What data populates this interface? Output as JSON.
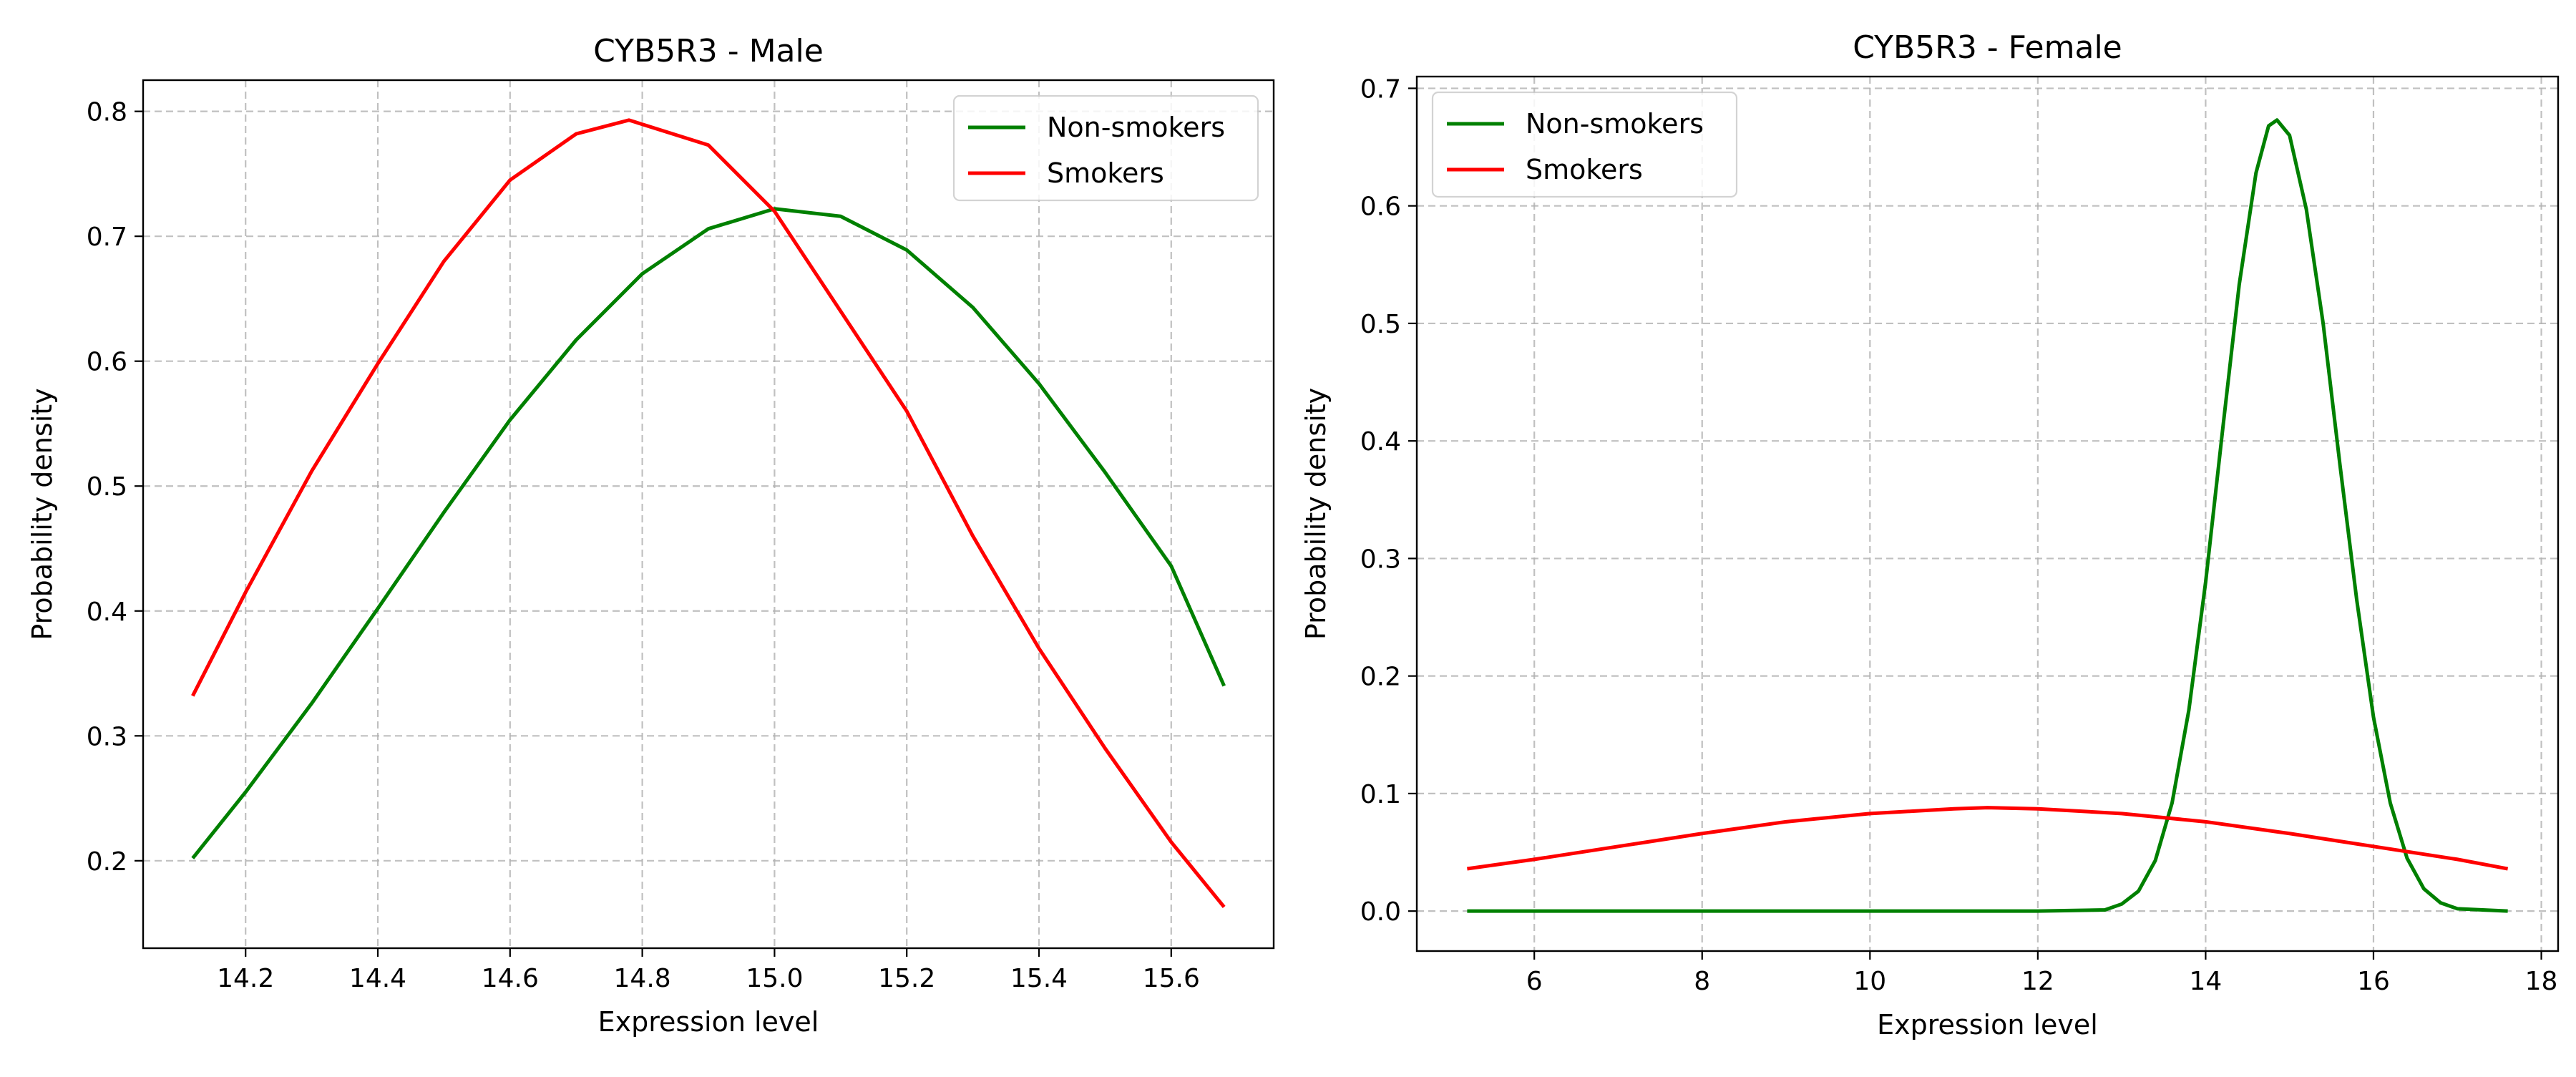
{
  "figure": {
    "background": "#ffffff"
  },
  "chart_data": [
    {
      "type": "line",
      "title": "CYB5R3 - Male",
      "xlabel": "Expression level",
      "ylabel": "Probability density",
      "xlim": [
        14.045,
        15.755
      ],
      "ylim": [
        0.13,
        0.825
      ],
      "xticks": [
        14.2,
        14.4,
        14.6,
        14.8,
        15.0,
        15.2,
        15.4,
        15.6
      ],
      "xtick_labels": [
        "14.2",
        "14.4",
        "14.6",
        "14.8",
        "15.0",
        "15.2",
        "15.4",
        "15.6"
      ],
      "yticks": [
        0.2,
        0.3,
        0.4,
        0.5,
        0.6,
        0.7,
        0.8
      ],
      "ytick_labels": [
        "0.2",
        "0.3",
        "0.4",
        "0.5",
        "0.6",
        "0.7",
        "0.8"
      ],
      "grid": true,
      "legend_position": "top-right",
      "series": [
        {
          "name": "Non-smokers",
          "color": "#008000",
          "x": [
            14.12,
            14.2,
            14.3,
            14.4,
            14.5,
            14.6,
            14.7,
            14.8,
            14.9,
            15.0,
            15.1,
            15.2,
            15.3,
            15.4,
            15.5,
            15.6,
            15.68
          ],
          "y": [
            0.202,
            0.255,
            0.326,
            0.402,
            0.479,
            0.553,
            0.617,
            0.67,
            0.706,
            0.722,
            0.716,
            0.689,
            0.643,
            0.582,
            0.511,
            0.436,
            0.34
          ]
        },
        {
          "name": "Smokers",
          "color": "#ff0000",
          "x": [
            14.12,
            14.2,
            14.3,
            14.4,
            14.5,
            14.6,
            14.7,
            14.78,
            14.9,
            15.0,
            15.1,
            15.2,
            15.3,
            15.4,
            15.5,
            15.6,
            15.68
          ],
          "y": [
            0.332,
            0.415,
            0.512,
            0.598,
            0.68,
            0.745,
            0.782,
            0.793,
            0.773,
            0.72,
            0.64,
            0.56,
            0.46,
            0.37,
            0.29,
            0.215,
            0.163
          ]
        }
      ]
    },
    {
      "type": "line",
      "title": "CYB5R3 - Female",
      "xlabel": "Expression level",
      "ylabel": "Probability density",
      "xlim": [
        4.6,
        18.2
      ],
      "ylim": [
        -0.034,
        0.71
      ],
      "xticks": [
        6,
        8,
        10,
        12,
        14,
        16,
        18
      ],
      "xtick_labels": [
        "6",
        "8",
        "10",
        "12",
        "14",
        "16",
        "18"
      ],
      "yticks": [
        0.0,
        0.1,
        0.2,
        0.3,
        0.4,
        0.5,
        0.6,
        0.7
      ],
      "ytick_labels": [
        "0.0",
        "0.1",
        "0.2",
        "0.3",
        "0.4",
        "0.5",
        "0.6",
        "0.7"
      ],
      "grid": true,
      "legend_position": "top-left",
      "series": [
        {
          "name": "Non-smokers",
          "color": "#008000",
          "x": [
            5.2,
            8.0,
            10.0,
            12.0,
            12.8,
            13.0,
            13.2,
            13.4,
            13.6,
            13.8,
            14.0,
            14.2,
            14.4,
            14.6,
            14.75,
            14.85,
            15.0,
            15.2,
            15.4,
            15.6,
            15.8,
            16.0,
            16.2,
            16.4,
            16.6,
            16.8,
            17.0,
            17.6
          ],
          "y": [
            0.0,
            0.0,
            0.0,
            0.0,
            0.001,
            0.006,
            0.017,
            0.043,
            0.092,
            0.171,
            0.28,
            0.408,
            0.533,
            0.628,
            0.668,
            0.673,
            0.66,
            0.597,
            0.5,
            0.38,
            0.265,
            0.165,
            0.092,
            0.045,
            0.019,
            0.007,
            0.002,
            0.0
          ]
        },
        {
          "name": "Smokers",
          "color": "#ff0000",
          "x": [
            5.2,
            6.0,
            7.0,
            8.0,
            9.0,
            10.0,
            11.0,
            11.4,
            12.0,
            13.0,
            14.0,
            15.0,
            16.0,
            17.0,
            17.6
          ],
          "y": [
            0.036,
            0.044,
            0.055,
            0.066,
            0.076,
            0.083,
            0.087,
            0.088,
            0.087,
            0.083,
            0.076,
            0.066,
            0.055,
            0.044,
            0.036
          ]
        }
      ]
    }
  ]
}
